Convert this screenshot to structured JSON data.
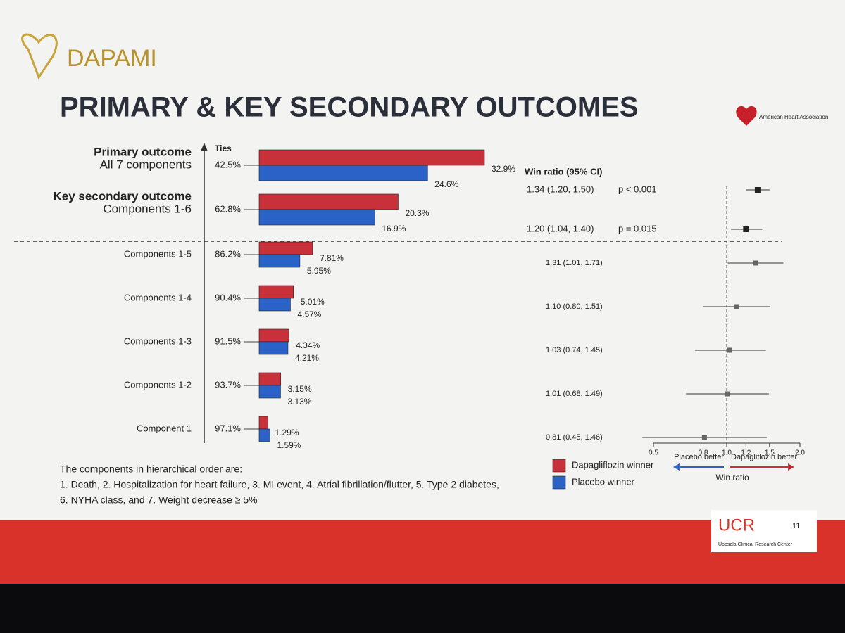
{
  "slide": {
    "logo": "DAPAMI",
    "title": "PRIMARY & KEY SECONDARY OUTCOMES",
    "sponsor": "American Heart Association",
    "footnote": [
      "The components in hierarchical order are:",
      "1. Death, 2. Hospitalization for heart failure, 3. MI event, 4. Atrial fibrillation/flutter, 5. Type 2 diabetes,",
      "6. NYHA class, and 7. Weight decrease ≥ 5%"
    ],
    "org_logo": "UCR",
    "org_name": "Uppsala Clinical Research Center",
    "page_number": "11"
  },
  "chart_data": [
    {
      "type": "bar",
      "orientation": "horizontal",
      "categories": [
        "Primary outcome",
        "Key secondary outcome",
        "Components 1-5",
        "Components 1-4",
        "Components 1-3",
        "Components 1-2",
        "Component 1"
      ],
      "category_sublabels": [
        "All 7 components",
        "Components 1-6",
        null,
        null,
        null,
        null,
        null
      ],
      "ties_label": "Ties",
      "ties": [
        42.5,
        62.8,
        86.2,
        90.4,
        91.5,
        93.7,
        97.1
      ],
      "ties_labels": [
        "42.5%",
        "62.8%",
        "86.2%",
        "90.4%",
        "91.5%",
        "93.7%",
        "97.1%"
      ],
      "series": [
        {
          "name": "Dapagliflozin winner",
          "color": "#c8303a",
          "values": [
            32.9,
            20.3,
            7.81,
            5.01,
            4.34,
            3.15,
            1.29
          ],
          "value_labels": [
            "32.9%",
            "20.3%",
            "7.81%",
            "5.01%",
            "4.34%",
            "3.15%",
            "1.29%"
          ]
        },
        {
          "name": "Placebo winner",
          "color": "#2a62c8",
          "values": [
            24.6,
            16.9,
            5.95,
            4.57,
            4.21,
            3.13,
            1.59
          ],
          "value_labels": [
            "24.6%",
            "16.9%",
            "5.95%",
            "4.57%",
            "4.21%",
            "3.13%",
            "1.59%"
          ]
        }
      ]
    },
    {
      "type": "forest",
      "header": "Win ratio (95% CI)",
      "values": [
        1.34,
        1.2,
        1.31,
        1.1,
        1.03,
        1.01,
        0.81
      ],
      "lower": [
        1.2,
        1.04,
        1.01,
        0.8,
        0.74,
        0.68,
        0.45
      ],
      "upper": [
        1.5,
        1.4,
        1.71,
        1.51,
        1.45,
        1.49,
        1.46
      ],
      "value_labels": [
        "1.34 (1.20, 1.50)",
        "1.20 (1.04, 1.40)",
        "1.31 (1.01, 1.71)",
        "1.10 (0.80, 1.51)",
        "1.03 (0.74, 1.45)",
        "1.01 (0.68, 1.49)",
        "0.81 (0.45, 1.46)"
      ],
      "p_labels": [
        "p < 0.001",
        "p = 0.015",
        null,
        null,
        null,
        null,
        null
      ],
      "log_scale": true,
      "xlim": [
        0.5,
        2.0
      ],
      "xticks": [
        0.5,
        0.8,
        {
          "value": 1,
          "label": "1.0"
        },
        1.2,
        1.5,
        {
          "value": 2,
          "label": "2.0"
        }
      ],
      "reference_line": 1,
      "left_label": "Placebo better",
      "right_label": "Dapagliflozin better",
      "xlabel": "Win ratio"
    }
  ]
}
